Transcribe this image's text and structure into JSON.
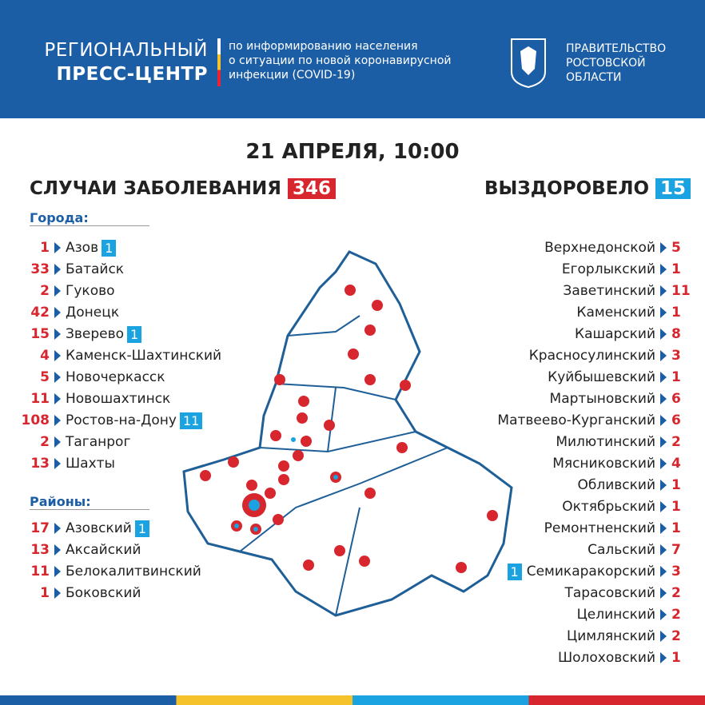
{
  "header": {
    "title": [
      "РЕГИОНАЛЬНЫЙ",
      "ПРЕСС-ЦЕНТР"
    ],
    "subtitle": [
      "по информированию населения",
      "о ситуации по новой коронавирусной",
      "инфекции (COVID-19)"
    ],
    "government": [
      "ПРАВИТЕЛЬСТВО",
      "РОСТОВСКОЙ",
      "ОБЛАСТИ"
    ]
  },
  "date": "21 АПРЕЛЯ, 10:00",
  "cases": {
    "label": "СЛУЧАИ ЗАБОЛЕВАНИЯ",
    "value": 346
  },
  "recovered": {
    "label": "ВЫЗДОРОВЕЛО",
    "value": 15
  },
  "cities": {
    "heading": "Города:",
    "items": [
      {
        "cases": 1,
        "name": "Азов",
        "recovered": 1
      },
      {
        "cases": 33,
        "name": "Батайск"
      },
      {
        "cases": 2,
        "name": "Гуково"
      },
      {
        "cases": 42,
        "name": "Донецк"
      },
      {
        "cases": 15,
        "name": "Зверево",
        "recovered": 1
      },
      {
        "cases": 4,
        "name": "Каменск-Шахтинский"
      },
      {
        "cases": 5,
        "name": "Новочеркасск"
      },
      {
        "cases": 11,
        "name": "Новошахтинск"
      },
      {
        "cases": 108,
        "name": "Ростов-на-Дону",
        "recovered": 11
      },
      {
        "cases": 2,
        "name": "Таганрог"
      },
      {
        "cases": 13,
        "name": "Шахты"
      }
    ]
  },
  "districts": {
    "heading": "Районы:",
    "items": [
      {
        "cases": 17,
        "name": "Азовский",
        "recovered": 1
      },
      {
        "cases": 13,
        "name": "Аксайский"
      },
      {
        "cases": 11,
        "name": "Белокалитвинский"
      },
      {
        "cases": 1,
        "name": "Боковский"
      }
    ]
  },
  "districts_right": [
    {
      "name": "Верхнедонской",
      "cases": 5
    },
    {
      "name": "Егорлыкский",
      "cases": 1
    },
    {
      "name": "Заветинский",
      "cases": 11
    },
    {
      "name": "Каменский",
      "cases": 1
    },
    {
      "name": "Кашарский",
      "cases": 8
    },
    {
      "name": "Красносулинский",
      "cases": 3
    },
    {
      "name": "Куйбышевский",
      "cases": 1
    },
    {
      "name": "Мартыновский",
      "cases": 6
    },
    {
      "name": "Матвеево-Курганский",
      "cases": 6
    },
    {
      "name": "Милютинский",
      "cases": 2
    },
    {
      "name": "Мясниковский",
      "cases": 4
    },
    {
      "name": "Обливский",
      "cases": 1
    },
    {
      "name": "Октябрьский",
      "cases": 1
    },
    {
      "name": "Ремонтненский",
      "cases": 1
    },
    {
      "name": "Сальский",
      "cases": 7
    },
    {
      "name": "Семикаракорский",
      "cases": 3,
      "recovered": 1
    },
    {
      "name": "Тарасовский",
      "cases": 2
    },
    {
      "name": "Целинский",
      "cases": 2
    },
    {
      "name": "Цимлянский",
      "cases": 2
    },
    {
      "name": "Шолоховский",
      "cases": 1
    }
  ]
}
